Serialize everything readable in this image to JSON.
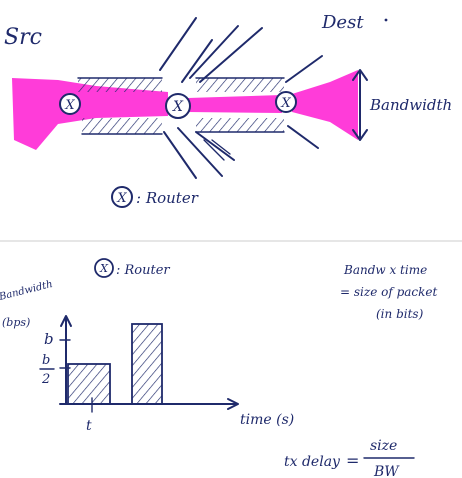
{
  "top": {
    "source_label": "Src",
    "dest_label": "Dest",
    "bandwidth_label": "Bandwidth",
    "router_symbol": "X",
    "router_legend": ": Router",
    "pink_color": "#ff2bd6",
    "ink_color": "#1f2a6b"
  },
  "bottom": {
    "router_symbol": "X",
    "router_legend": ": Router",
    "note_line1": "Bandw x time",
    "note_line2": "= size of packet",
    "note_line3": "(in bits)",
    "chart": {
      "ylabel_line1": "Bandwidth",
      "ylabel_line2": "(bps)",
      "tick_b": "b",
      "tick_half_num": "b",
      "tick_half_den": "2",
      "xlabel": "time (s)",
      "x_tick": "t"
    },
    "formula": {
      "lhs": "tx delay",
      "equals": "=",
      "numerator": "size",
      "denominator": "BW"
    }
  }
}
